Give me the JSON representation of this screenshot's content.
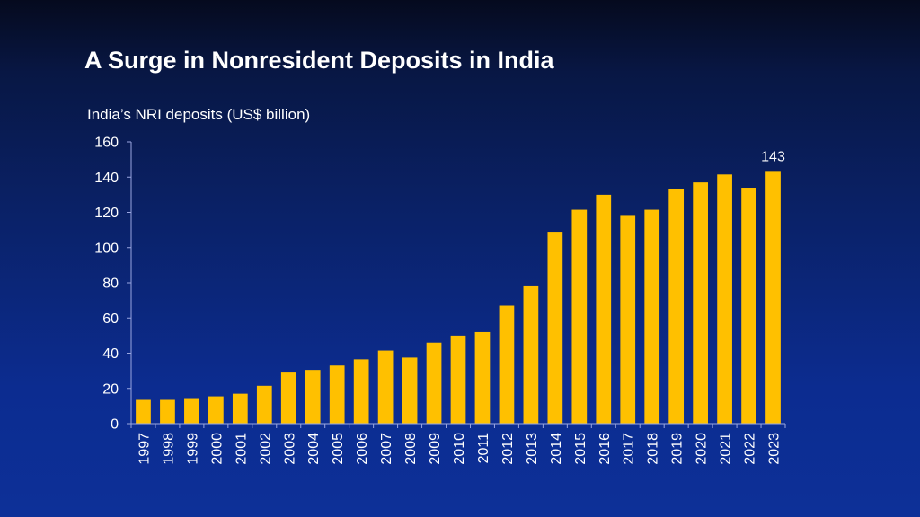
{
  "slide": {
    "title": "A Surge in Nonresident Deposits in India"
  },
  "chart_data": {
    "type": "bar",
    "title": "India’s NRI deposits (US$ billion)",
    "xlabel": "",
    "ylabel": "",
    "categories": [
      "1997",
      "1998",
      "1999",
      "2000",
      "2001",
      "2002",
      "2003",
      "2004",
      "2005",
      "2006",
      "2007",
      "2008",
      "2009",
      "2010",
      "2011",
      "2012",
      "2013",
      "2014",
      "2015",
      "2016",
      "2017",
      "2018",
      "2019",
      "2020",
      "2021",
      "2022",
      "2023"
    ],
    "values": [
      13.5,
      13.5,
      14.5,
      15.5,
      17,
      21.5,
      29,
      30.5,
      33,
      36.5,
      41.5,
      37.5,
      46,
      50,
      52,
      67,
      78,
      108.5,
      121.5,
      130,
      118,
      121.5,
      133,
      137,
      141.5,
      133.5,
      143
    ],
    "ylim": [
      0,
      160
    ],
    "yticks": [
      0,
      20,
      40,
      60,
      80,
      100,
      120,
      140,
      160
    ],
    "grid": false,
    "bar_color": "#ffc000",
    "axis_color": "#9aa6e0",
    "annotations": [
      {
        "category": "2023",
        "text": "143"
      }
    ]
  }
}
